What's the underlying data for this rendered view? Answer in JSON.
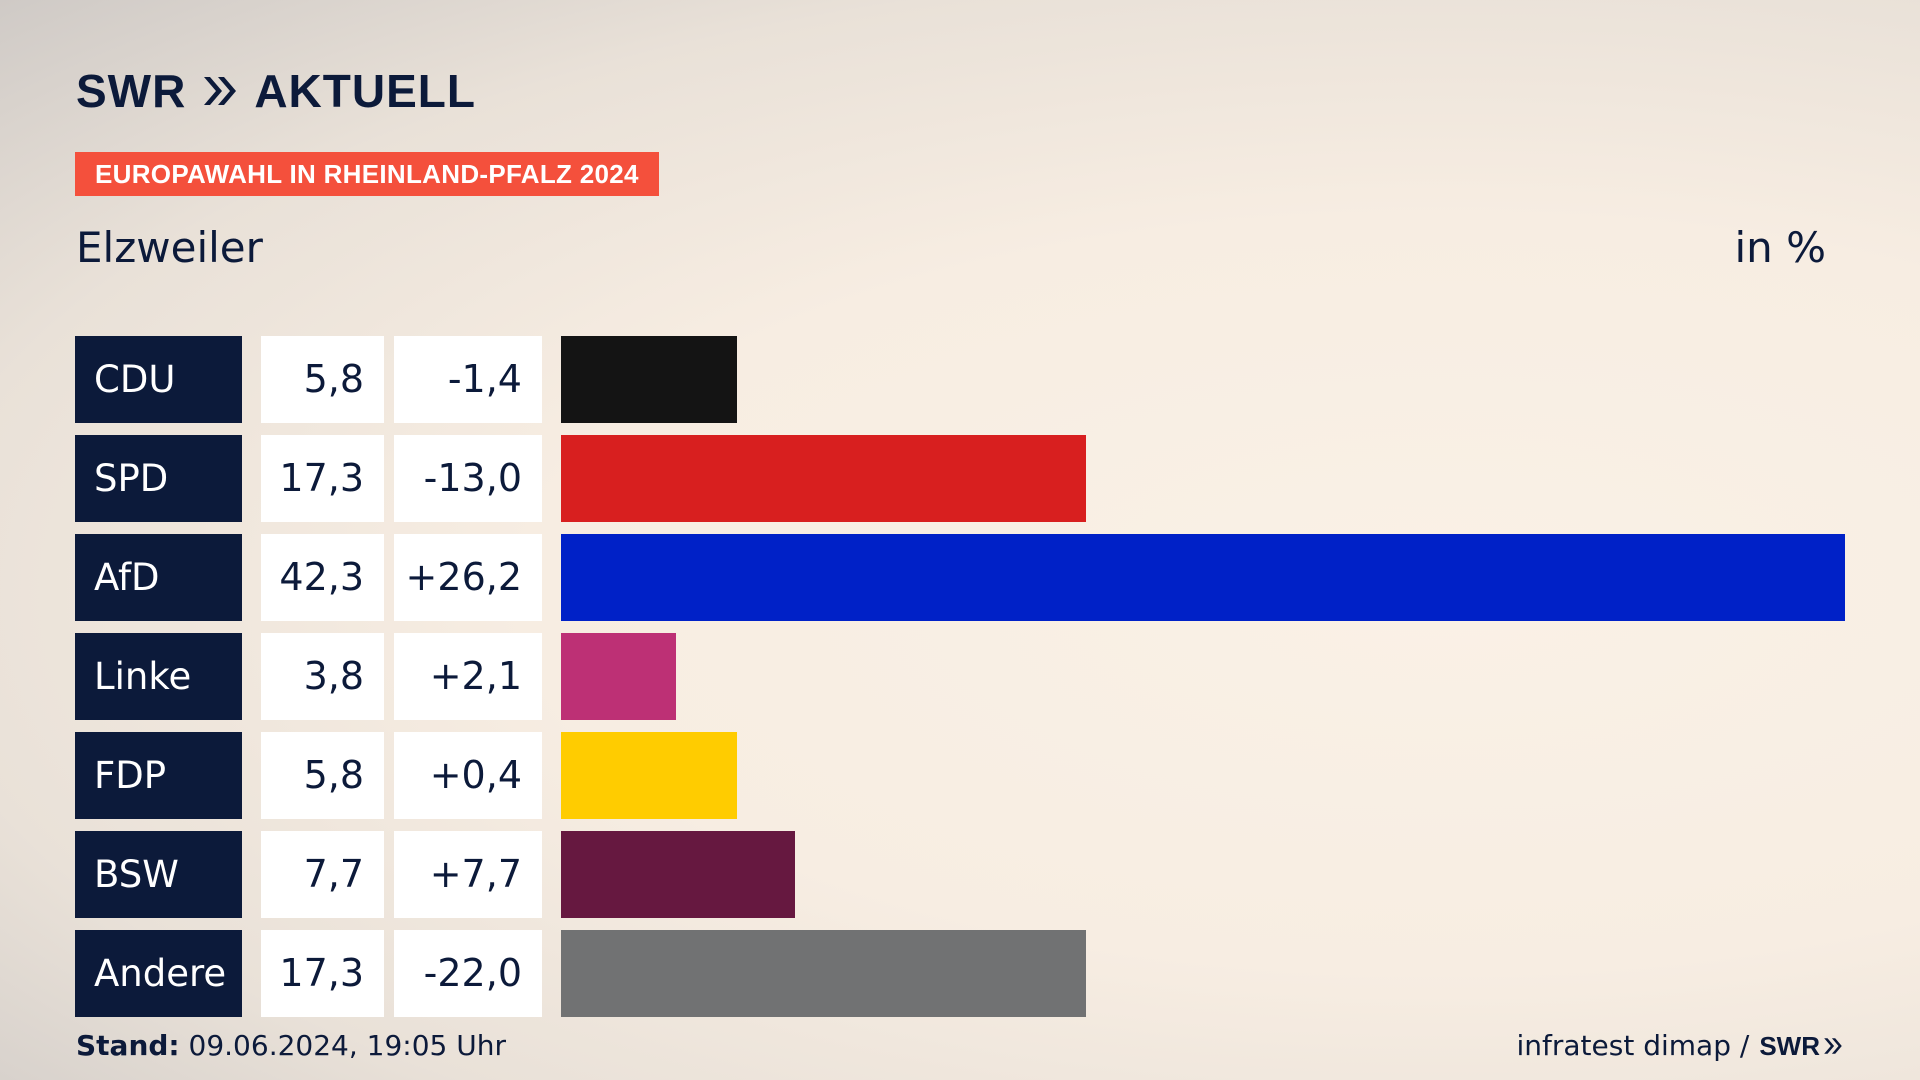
{
  "header": {
    "brand": "SWR",
    "brand_suffix": "AKTUELL",
    "tag": "EUROPAWAHL IN RHEINLAND-PFALZ 2024",
    "region": "Elzweiler",
    "unit": "in %"
  },
  "footer": {
    "stand_label": "Stand:",
    "stand_value": "09.06.2024, 19:05 Uhr",
    "source": "infratest dimap /",
    "source_brand": "SWR"
  },
  "chart_data": {
    "type": "bar",
    "orientation": "horizontal",
    "title": "Elzweiler",
    "unit": "in %",
    "max_value": 42.3,
    "categories": [
      "CDU",
      "SPD",
      "AfD",
      "Linke",
      "FDP",
      "BSW",
      "Andere"
    ],
    "values": [
      5.8,
      17.3,
      42.3,
      3.8,
      5.8,
      7.7,
      17.3
    ],
    "value_labels": [
      "5,8",
      "17,3",
      "42,3",
      "3,8",
      "5,8",
      "7,7",
      "17,3"
    ],
    "diff_labels": [
      "-1,4",
      "-13,0",
      "+26,2",
      "+2,1",
      "+0,4",
      "+7,7",
      "-22,0"
    ],
    "colors": [
      "#141414",
      "#d81f1f",
      "#0021c7",
      "#bd3075",
      "#ffcc00",
      "#661840",
      "#717273"
    ]
  }
}
